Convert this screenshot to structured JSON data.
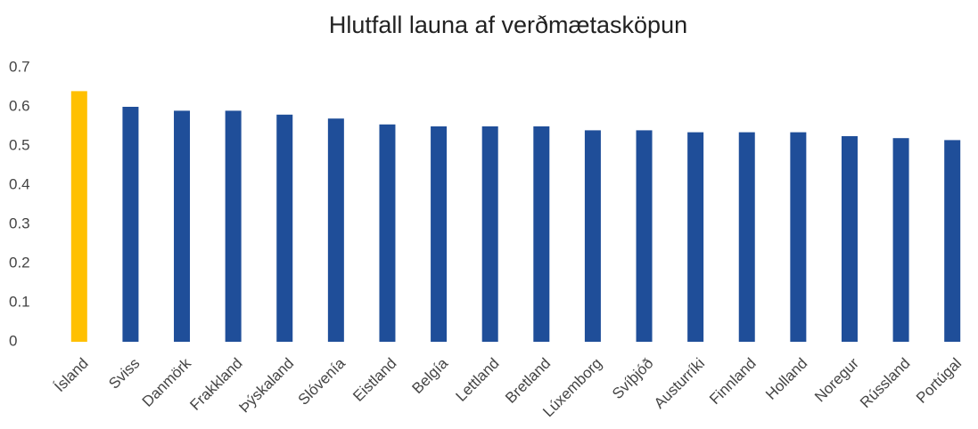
{
  "chart_data": {
    "type": "bar",
    "title": "Hlutfall launa af verðmætasköpun",
    "categories": [
      "Ísland",
      "Sviss",
      "Danmörk",
      "Frakkland",
      "Þýskaland",
      "Slóvenía",
      "Eistland",
      "Belgía",
      "Lettland",
      "Bretland",
      "Lúxemborg",
      "Svíþjóð",
      "Austurríki",
      "Finnland",
      "Holland",
      "Noregur",
      "Rússland",
      "Portúgal"
    ],
    "values": [
      0.64,
      0.6,
      0.59,
      0.59,
      0.58,
      0.57,
      0.555,
      0.55,
      0.55,
      0.55,
      0.54,
      0.54,
      0.535,
      0.535,
      0.535,
      0.525,
      0.52,
      0.515
    ],
    "colors": [
      "#ffc000",
      "#1f4e99",
      "#1f4e99",
      "#1f4e99",
      "#1f4e99",
      "#1f4e99",
      "#1f4e99",
      "#1f4e99",
      "#1f4e99",
      "#1f4e99",
      "#1f4e99",
      "#1f4e99",
      "#1f4e99",
      "#1f4e99",
      "#1f4e99",
      "#1f4e99",
      "#1f4e99",
      "#1f4e99"
    ],
    "ylim": [
      0,
      0.7
    ],
    "yticks": [
      0,
      0.1,
      0.2,
      0.3,
      0.4,
      0.5,
      0.6,
      0.7
    ],
    "grid": false
  }
}
